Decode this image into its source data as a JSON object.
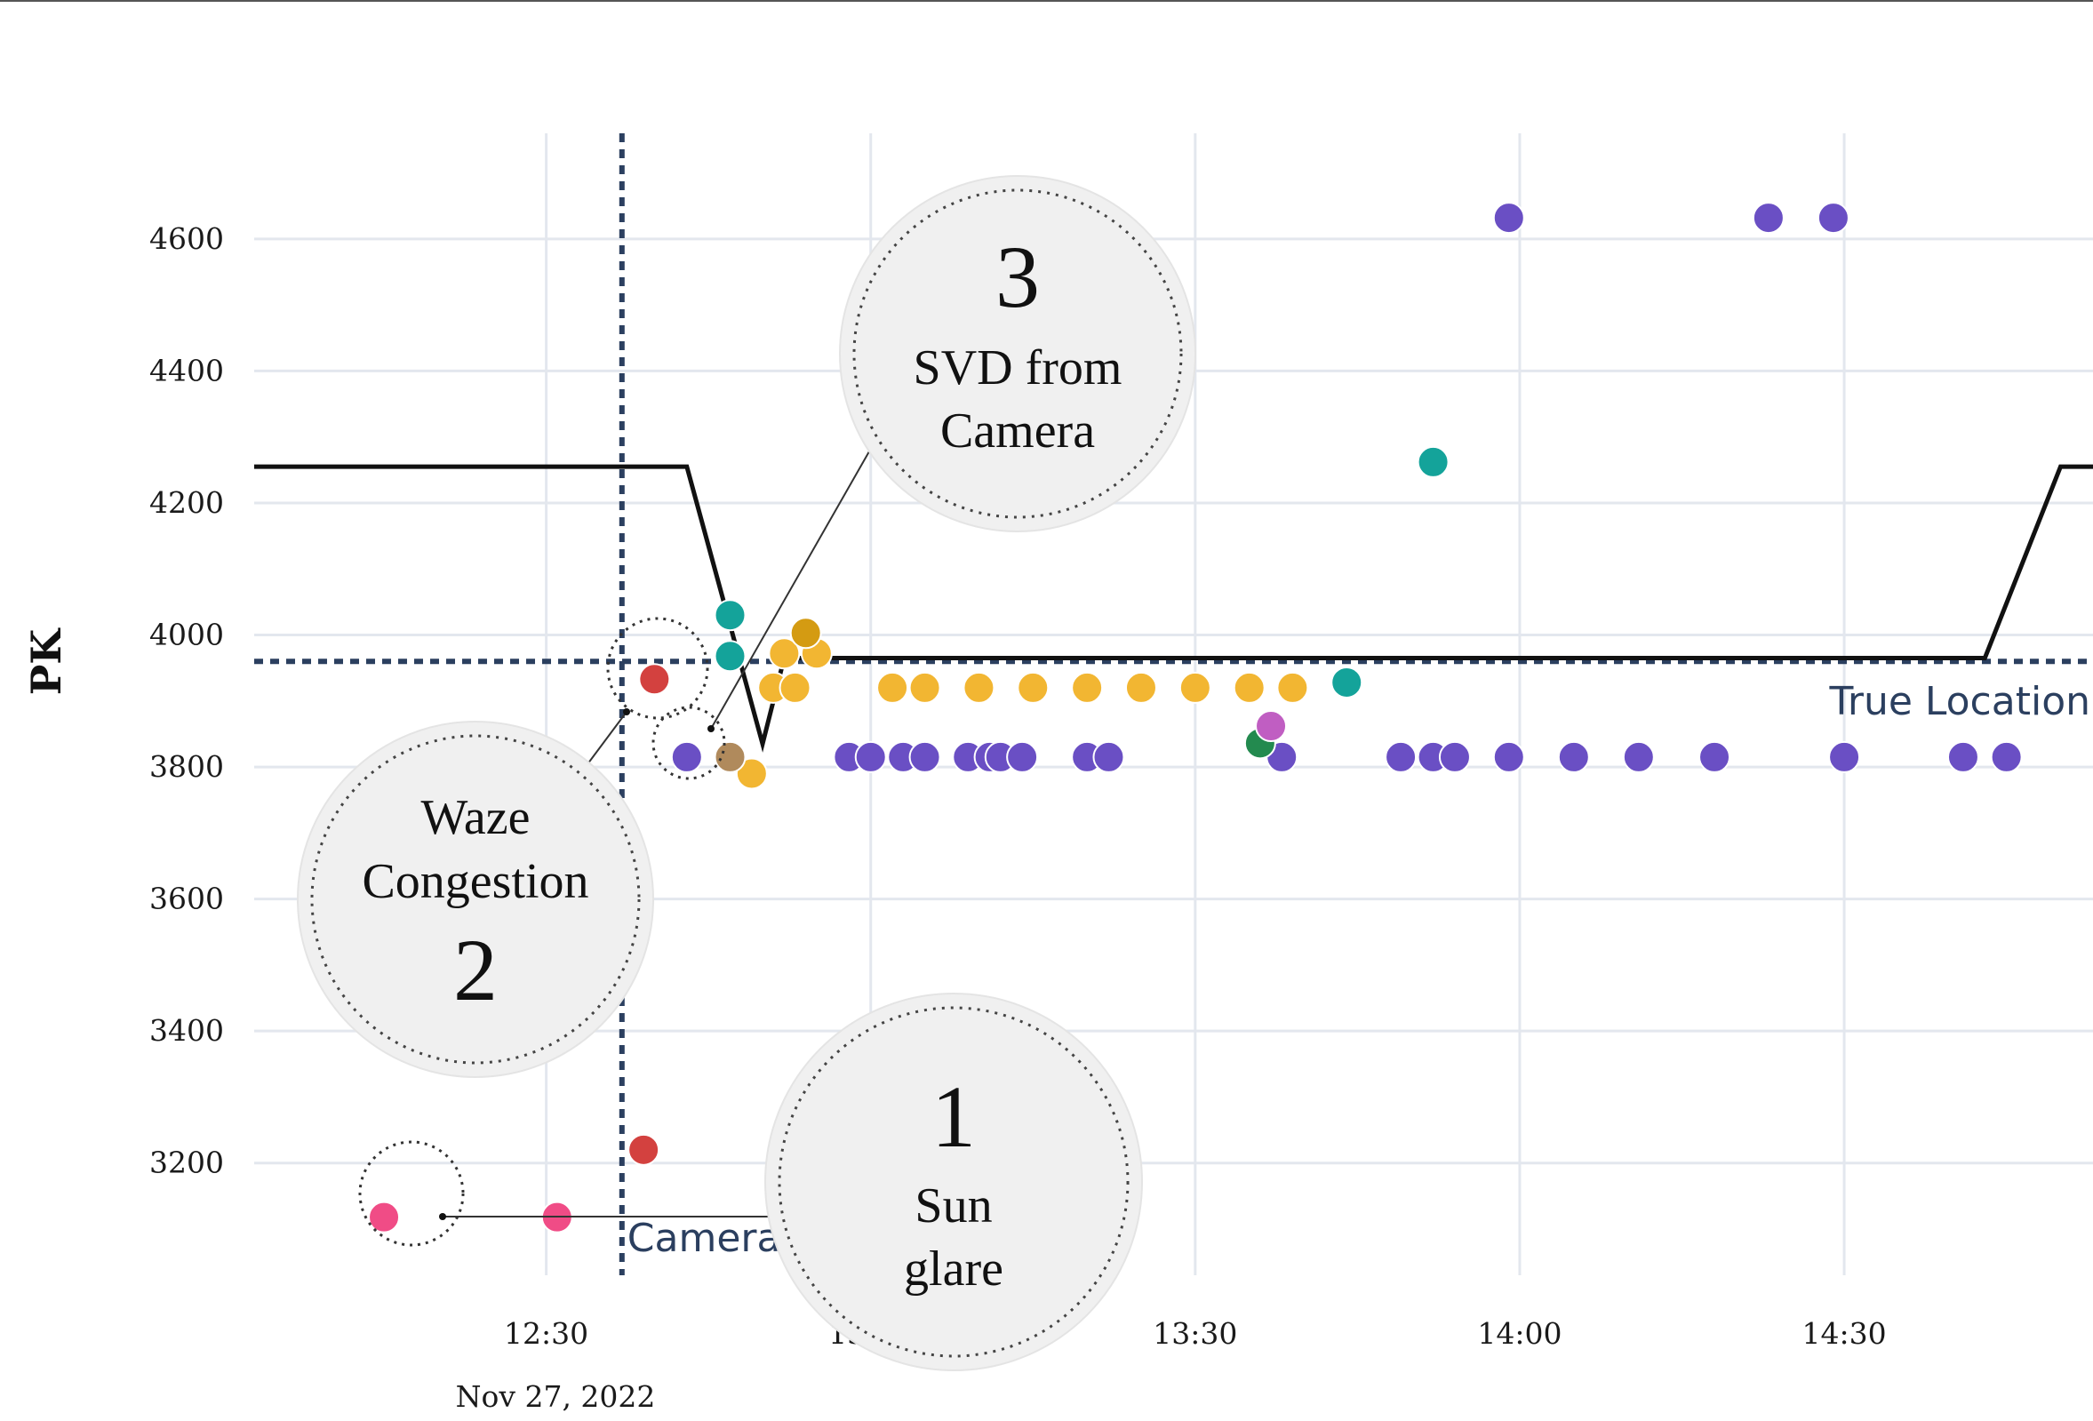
{
  "chart_data": {
    "type": "scatter",
    "ylabel": "PK",
    "xlabel": "",
    "x_ticks": [
      "12:30",
      "13:00",
      "13:30",
      "14:00",
      "14:30"
    ],
    "x_date_label": "Nov 27, 2022",
    "y_ticks": [
      3200,
      3400,
      3600,
      3800,
      4000,
      4200,
      4400,
      4600
    ],
    "x_range": [
      "12:03",
      "14:53"
    ],
    "ylim": [
      3030,
      4760
    ],
    "grid": true,
    "colors": {
      "grid": "#e3e7ee",
      "ref_line": "#2b3f5f",
      "track": "#111111",
      "purple": "#6a4fc4",
      "yellow": "#f2b632",
      "dark_yellow": "#d49b12",
      "teal": "#14a39a",
      "red": "#d3413f",
      "pink": "#f04c86",
      "brown": "#b08a5c",
      "green": "#238a4f",
      "magenta": "#c05ec2",
      "annotation_fill": "#f0f0f0"
    },
    "reference_lines": {
      "camera": {
        "x": "12:37",
        "label": "Camera"
      },
      "true_location": {
        "y": 3960,
        "label": "True Location"
      }
    },
    "track_line": [
      [
        "12:03",
        4255
      ],
      [
        "12:43",
        4255
      ],
      [
        "12:50",
        3835
      ],
      [
        "12:52",
        3965
      ],
      [
        "14:43",
        3965
      ],
      [
        "14:50",
        4255
      ],
      [
        "14:53",
        4255
      ]
    ],
    "series": [
      {
        "color": "purple",
        "points": [
          [
            "12:43",
            3815
          ],
          [
            "12:47",
            3815
          ],
          [
            "12:58",
            3815
          ],
          [
            "13:00",
            3815
          ],
          [
            "13:03",
            3815
          ],
          [
            "13:05",
            3815
          ],
          [
            "13:09",
            3815
          ],
          [
            "13:11",
            3815
          ],
          [
            "13:12",
            3815
          ],
          [
            "13:14",
            3815
          ],
          [
            "13:20",
            3815
          ],
          [
            "13:22",
            3815
          ],
          [
            "13:38",
            3815
          ],
          [
            "13:49",
            3815
          ],
          [
            "13:52",
            3815
          ],
          [
            "13:54",
            3815
          ],
          [
            "13:59",
            3815
          ],
          [
            "14:05",
            3815
          ],
          [
            "14:11",
            3815
          ],
          [
            "14:18",
            3815
          ],
          [
            "14:30",
            3815
          ],
          [
            "14:41",
            3815
          ],
          [
            "14:45",
            3815
          ],
          [
            "13:59",
            4632
          ],
          [
            "14:23",
            4632
          ],
          [
            "14:29",
            4632
          ]
        ]
      },
      {
        "color": "yellow",
        "points": [
          [
            "12:52",
            3972
          ],
          [
            "12:51",
            3920
          ],
          [
            "12:53",
            3920
          ],
          [
            "12:55",
            3972
          ],
          [
            "13:02",
            3920
          ],
          [
            "13:05",
            3920
          ],
          [
            "13:10",
            3920
          ],
          [
            "13:15",
            3920
          ],
          [
            "13:20",
            3920
          ],
          [
            "13:25",
            3920
          ],
          [
            "13:30",
            3920
          ],
          [
            "13:35",
            3920
          ],
          [
            "13:39",
            3920
          ],
          [
            "12:49",
            3790
          ]
        ]
      },
      {
        "color": "dark_yellow",
        "points": [
          [
            "12:54",
            4003
          ]
        ]
      },
      {
        "color": "teal",
        "points": [
          [
            "12:47",
            4030
          ],
          [
            "12:47",
            3968
          ],
          [
            "13:44",
            3928
          ],
          [
            "13:52",
            4262
          ]
        ]
      },
      {
        "color": "red",
        "points": [
          [
            "12:40",
            3933
          ],
          [
            "12:39",
            3220
          ]
        ]
      },
      {
        "color": "pink",
        "points": [
          [
            "12:15",
            3118
          ],
          [
            "12:31",
            3118
          ]
        ]
      },
      {
        "color": "brown",
        "points": [
          [
            "12:47",
            3815
          ]
        ]
      },
      {
        "color": "green",
        "points": [
          [
            "13:36",
            3836
          ]
        ]
      },
      {
        "color": "magenta",
        "points": [
          [
            "13:37",
            3862
          ]
        ]
      }
    ],
    "annotations": [
      {
        "number": "3",
        "label_line1": "SVD from",
        "label_line2": "Camera"
      },
      {
        "number": "2",
        "label_line1": "Waze",
        "label_line2": "Congestion"
      },
      {
        "number": "1",
        "label_line1": "Sun",
        "label_line2": "glare"
      }
    ]
  }
}
